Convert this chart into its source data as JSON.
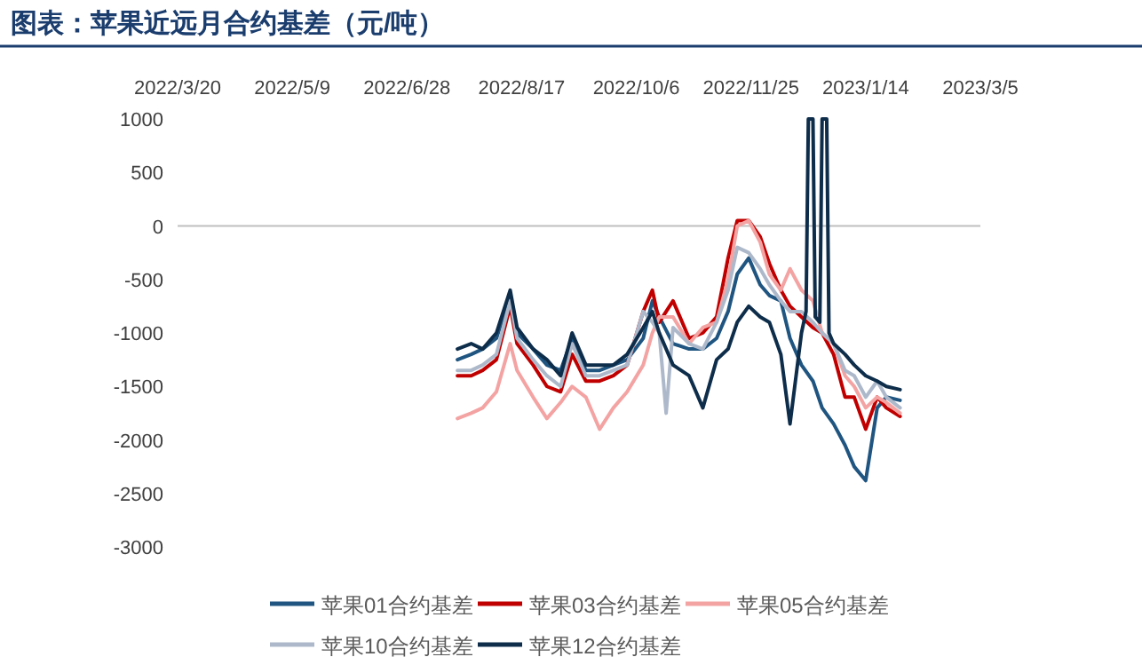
{
  "chart_data": {
    "type": "line",
    "title": "图表：苹果近远月合约基差（元/吨）",
    "x": [
      "2022-07-20",
      "2022-07-26",
      "2022-07-31",
      "2022-08-06",
      "2022-08-12",
      "2022-08-15",
      "2022-08-22",
      "2022-08-28",
      "2022-09-03",
      "2022-09-08",
      "2022-09-14",
      "2022-09-20",
      "2022-09-26",
      "2022-10-02",
      "2022-10-09",
      "2022-10-13",
      "2022-10-16",
      "2022-10-22",
      "2022-10-29",
      "2022-11-04",
      "2022-11-10",
      "2022-11-15",
      "2022-11-19",
      "2022-11-24",
      "2022-11-29",
      "2022-12-03",
      "2022-12-08",
      "2022-12-12",
      "2022-12-17",
      "2022-12-22",
      "2022-12-26",
      "2022-12-31",
      "2023-01-05",
      "2023-01-09",
      "2023-01-14",
      "2023-01-19",
      "2023-01-23",
      "2023-01-29"
    ],
    "xlim": [
      "2022-03-20",
      "2023-03-05"
    ],
    "xticks": [
      {
        "value": "2022-03-20",
        "label": "2022/3/20"
      },
      {
        "value": "2022-05-09",
        "label": "2022/5/9"
      },
      {
        "value": "2022-06-28",
        "label": "2022/6/28"
      },
      {
        "value": "2022-08-17",
        "label": "2022/8/17"
      },
      {
        "value": "2022-10-06",
        "label": "2022/10/6"
      },
      {
        "value": "2022-11-25",
        "label": "2022/11/25"
      },
      {
        "value": "2023-01-14",
        "label": "2023/1/14"
      },
      {
        "value": "2023-03-05",
        "label": "2023/3/5"
      }
    ],
    "ylim": [
      -3000,
      1000
    ],
    "yticks": [
      -3000,
      -2500,
      -2000,
      -1500,
      -1000,
      -500,
      0,
      500,
      1000
    ],
    "ref_lines": [
      {
        "axis": "y",
        "value": 0,
        "color": "#bfbfbf"
      }
    ],
    "legend": "bottom",
    "line_style": "solid",
    "marker": "none",
    "series": [
      {
        "name": "苹果01合约基差",
        "color": "#1f5580",
        "values": [
          -1250,
          -1200,
          -1150,
          -1050,
          -650,
          -1000,
          -1150,
          -1300,
          -1350,
          -1050,
          -1350,
          -1350,
          -1300,
          -1250,
          -1050,
          -700,
          -850,
          -1100,
          -1150,
          -1150,
          -1050,
          -800,
          -450,
          -300,
          -550,
          -650,
          -700,
          -1050,
          -1300,
          -1450,
          -1700,
          -1850,
          -2050,
          -2250,
          -2380,
          -1700,
          -1600,
          -1630
        ]
      },
      {
        "name": "苹果03合约基差",
        "color": "#c00000",
        "values": [
          -1400,
          -1400,
          -1350,
          -1250,
          -750,
          -1100,
          -1300,
          -1500,
          -1550,
          -1200,
          -1450,
          -1450,
          -1400,
          -1300,
          -800,
          -600,
          -900,
          -700,
          -1050,
          -1000,
          -850,
          -300,
          50,
          50,
          -100,
          -350,
          -600,
          -750,
          -850,
          -950,
          -1000,
          -1200,
          -1600,
          -1600,
          -1900,
          -1600,
          -1700,
          -1780
        ]
      },
      {
        "name": "苹果05合约基差",
        "color": "#f4a3a3",
        "values": [
          -1800,
          -1750,
          -1700,
          -1550,
          -1100,
          -1350,
          -1600,
          -1800,
          -1650,
          -1500,
          -1600,
          -1900,
          -1700,
          -1550,
          -1300,
          -1000,
          -850,
          -850,
          -1100,
          -950,
          -900,
          -500,
          0,
          50,
          -150,
          -450,
          -600,
          -400,
          -600,
          -700,
          -1000,
          -1100,
          -1400,
          -1500,
          -1700,
          -1600,
          -1650,
          -1750
        ]
      },
      {
        "name": "苹果10合约基差",
        "color": "#adb9ca",
        "x": [
          "2022-07-20",
          "2022-07-26",
          "2022-07-31",
          "2022-08-06",
          "2022-08-12",
          "2022-08-15",
          "2022-08-22",
          "2022-08-28",
          "2022-09-03",
          "2022-09-08",
          "2022-09-14",
          "2022-09-20",
          "2022-09-26",
          "2022-10-02",
          "2022-10-09",
          "2022-10-13",
          "2022-10-16",
          "2022-10-19",
          "2022-10-22",
          "2022-10-29",
          "2022-11-04",
          "2022-11-10",
          "2022-11-15",
          "2022-11-19",
          "2022-11-24",
          "2022-11-29",
          "2022-12-03",
          "2022-12-08",
          "2022-12-12",
          "2022-12-17",
          "2022-12-22",
          "2022-12-26",
          "2022-12-31",
          "2023-01-05",
          "2023-01-09",
          "2023-01-14",
          "2023-01-19",
          "2023-01-23",
          "2023-01-29"
        ],
        "values": [
          -1350,
          -1350,
          -1300,
          -1200,
          -700,
          -1050,
          -1250,
          -1400,
          -1500,
          -1100,
          -1400,
          -1400,
          -1350,
          -1300,
          -800,
          -900,
          -1000,
          -1750,
          -950,
          -1100,
          -1150,
          -900,
          -600,
          -200,
          -250,
          -400,
          -550,
          -700,
          -800,
          -800,
          -900,
          -1000,
          -1100,
          -1350,
          -1400,
          -1600,
          -1450,
          -1600,
          -1700
        ]
      },
      {
        "name": "苹果12合约基差",
        "color": "#0d2d4a",
        "x": [
          "2022-07-20",
          "2022-07-26",
          "2022-07-31",
          "2022-08-06",
          "2022-08-12",
          "2022-08-15",
          "2022-08-22",
          "2022-08-28",
          "2022-09-03",
          "2022-09-08",
          "2022-09-14",
          "2022-09-20",
          "2022-09-26",
          "2022-10-02",
          "2022-10-09",
          "2022-10-13",
          "2022-10-16",
          "2022-10-22",
          "2022-10-29",
          "2022-11-04",
          "2022-11-10",
          "2022-11-15",
          "2022-11-19",
          "2022-11-24",
          "2022-11-29",
          "2022-12-03",
          "2022-12-08",
          "2022-12-12",
          "2022-12-17",
          "2022-12-19",
          "2022-12-20",
          "2022-12-22",
          "2022-12-23",
          "2022-12-25",
          "2022-12-26",
          "2022-12-28",
          "2022-12-29",
          "2022-12-31",
          "2023-01-05",
          "2023-01-09",
          "2023-01-14",
          "2023-01-19",
          "2023-01-23",
          "2023-01-29"
        ],
        "values": [
          -1150,
          -1100,
          -1150,
          -1000,
          -600,
          -950,
          -1150,
          -1250,
          -1400,
          -1000,
          -1300,
          -1300,
          -1300,
          -1200,
          -950,
          -800,
          -1000,
          -1300,
          -1400,
          -1700,
          -1250,
          -1150,
          -900,
          -750,
          -850,
          -900,
          -1200,
          -1850,
          -1000,
          -800,
          1000,
          1000,
          -850,
          -900,
          1000,
          1000,
          -1000,
          -1100,
          -1200,
          -1300,
          -1400,
          -1450,
          -1500,
          -1530
        ]
      }
    ]
  }
}
